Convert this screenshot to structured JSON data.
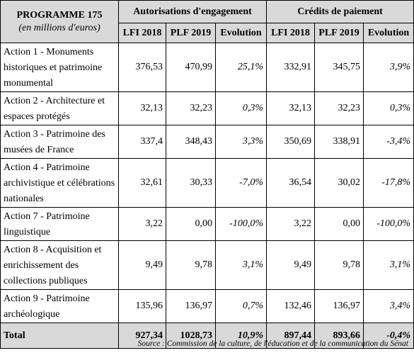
{
  "header": {
    "title": "PROGRAMME 175",
    "subtitle": "(en millions d'euros)",
    "groups": [
      "Autorisations d'engagement",
      "Crédits de paiement"
    ],
    "columns": [
      "LFI 2018",
      "PLF 2019",
      "Evolution",
      "LFI 2018",
      "PLF 2019",
      "Evolution"
    ]
  },
  "table": {
    "rows": [
      [
        "Action 1 - Monuments historiques et patrimoine monumental",
        "376,53",
        "470,99",
        "25,1%",
        "332,91",
        "345,75",
        "3,9%"
      ],
      [
        "Action 2 - Architecture et espaces protégés",
        "32,13",
        "32,23",
        "0,3%",
        "32,13",
        "32,23",
        "0,3%"
      ],
      [
        "Action 3 - Patrimoine des musées de France",
        "337,4",
        "348,43",
        "3,3%",
        "350,69",
        "338,91",
        "-3,4%"
      ],
      [
        "Action 4 - Patrimoine archivistique et célébrations nationales",
        "32,61",
        "30,33",
        "-7,0%",
        "36,54",
        "30,02",
        "-17,8%"
      ],
      [
        "Action 7 - Patrimoine linguistique",
        "3,22",
        "0,00",
        "-100,0%",
        "3,22",
        "0,00",
        "-100,0%"
      ],
      [
        "Action 8 - Acquisition et enrichissement des collections publiques",
        "9,49",
        "9,78",
        "3,1%",
        "9,49",
        "9,78",
        "3,1%"
      ],
      [
        "Action 9 - Patrimoine archéologique",
        "135,96",
        "136,97",
        "0,7%",
        "132,46",
        "136,97",
        "3,4%"
      ]
    ],
    "total": [
      "Total",
      "927,34",
      "1028,73",
      "10,9%",
      "897,44",
      "893,66",
      "-0,4%"
    ]
  },
  "source": "Source : Commission de la culture, de l'éducation et de la communication du Sénat"
}
